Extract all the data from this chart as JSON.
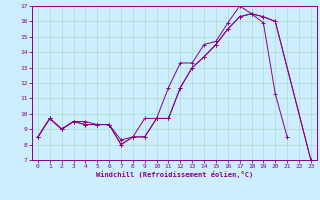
{
  "background_color": "#cceeff",
  "line_color": "#880088",
  "grid_color": "#aaddcc",
  "xlabel": "Windchill (Refroidissement éolien,°C)",
  "xlim_min": 0,
  "xlim_max": 23,
  "ylim_min": 7,
  "ylim_max": 17,
  "xticks": [
    0,
    1,
    2,
    3,
    4,
    5,
    6,
    7,
    8,
    9,
    10,
    11,
    12,
    13,
    14,
    15,
    16,
    17,
    18,
    19,
    20,
    21,
    22,
    23
  ],
  "yticks": [
    7,
    8,
    9,
    10,
    11,
    12,
    13,
    14,
    15,
    16,
    17
  ],
  "line1_x": [
    0,
    1,
    2,
    3,
    4,
    5,
    6,
    7,
    8,
    9,
    10,
    11,
    12,
    13,
    14,
    15,
    16,
    17,
    18,
    19,
    20,
    21
  ],
  "line1_y": [
    8.5,
    9.7,
    9.0,
    9.5,
    9.5,
    9.3,
    9.3,
    8.0,
    8.5,
    9.7,
    9.7,
    11.7,
    13.3,
    13.3,
    14.5,
    14.7,
    15.9,
    17.0,
    16.5,
    15.9,
    11.3,
    8.5
  ],
  "line2_x": [
    0,
    1,
    2,
    3,
    4,
    5,
    6,
    7,
    8,
    9,
    10,
    11,
    12,
    13,
    14,
    15,
    16,
    17,
    18,
    19,
    20,
    23
  ],
  "line2_y": [
    8.5,
    9.7,
    9.0,
    9.5,
    9.3,
    9.3,
    9.3,
    8.0,
    8.5,
    8.5,
    9.7,
    9.7,
    11.7,
    13.0,
    13.7,
    14.5,
    15.5,
    16.3,
    16.5,
    16.3,
    16.0,
    7.0
  ],
  "line3_x": [
    0,
    1,
    2,
    3,
    4,
    5,
    6,
    7,
    8,
    9,
    10,
    11,
    12,
    13,
    14,
    15,
    16,
    17,
    18,
    19,
    20,
    23
  ],
  "line3_y": [
    8.5,
    9.7,
    9.0,
    9.5,
    9.3,
    9.3,
    9.3,
    8.3,
    8.5,
    8.5,
    9.7,
    9.7,
    11.7,
    13.0,
    13.7,
    14.5,
    15.5,
    16.3,
    16.5,
    16.3,
    16.0,
    7.0
  ]
}
